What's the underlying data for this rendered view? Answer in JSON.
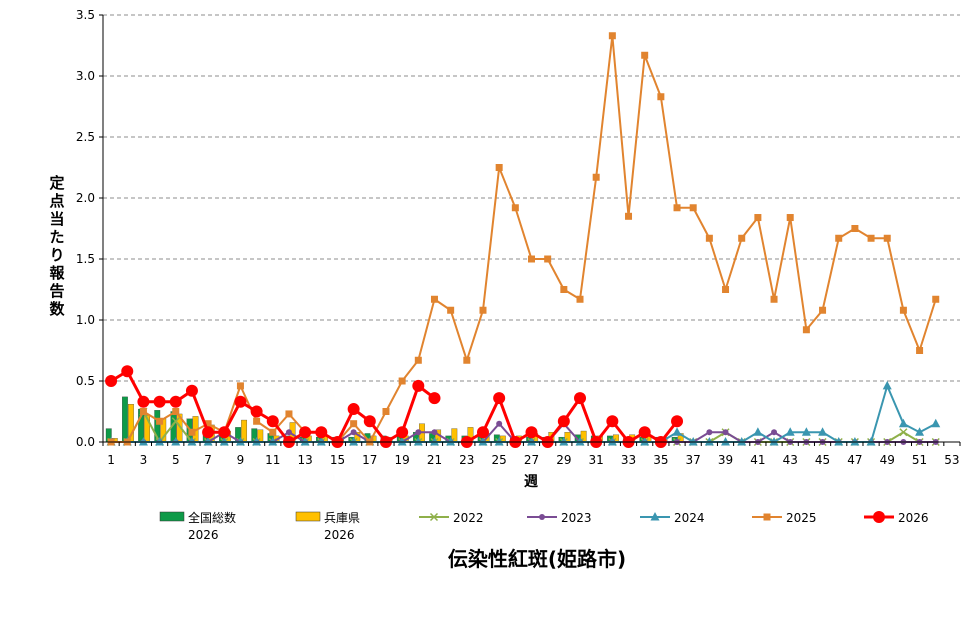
{
  "chart_data": {
    "type": "bar",
    "title": "伝染性紅斑(姫路市)",
    "xlabel": "週",
    "ylabel": "定点当たり報告数",
    "ylim": [
      0,
      3.5
    ],
    "yticks": [
      "0.0",
      "0.5",
      "1.0",
      "1.5",
      "2.0",
      "2.5",
      "3.0",
      "3.5"
    ],
    "x": [
      1,
      2,
      3,
      4,
      5,
      6,
      7,
      8,
      9,
      10,
      11,
      12,
      13,
      14,
      15,
      16,
      17,
      18,
      19,
      20,
      21,
      22,
      23,
      24,
      25,
      26,
      27,
      28,
      29,
      30,
      31,
      32,
      33,
      34,
      35,
      36,
      37,
      38,
      39,
      40,
      41,
      42,
      43,
      44,
      45,
      46,
      47,
      48,
      49,
      50,
      51,
      52,
      53
    ],
    "xtick_labels": [
      "1",
      "3",
      "5",
      "7",
      "9",
      "11",
      "13",
      "15",
      "17",
      "19",
      "21",
      "23",
      "25",
      "27",
      "29",
      "31",
      "33",
      "35",
      "37",
      "39",
      "41",
      "43",
      "45",
      "47",
      "49",
      "51",
      "53"
    ],
    "grid": true,
    "legend_position": "bottom",
    "bars": [
      {
        "name": "全国総数\n2026",
        "color": "#0e9a48",
        "values": [
          0.11,
          0.37,
          0.27,
          0.26,
          0.25,
          0.19,
          0.07,
          0.06,
          0.12,
          0.11,
          0.07,
          0.05,
          0.04,
          0.04,
          0.04,
          0.04,
          0.07,
          0.05,
          0.06,
          0.08,
          0.07,
          0.05,
          0.05,
          0.05,
          0.06,
          0.04,
          0.04,
          0.04,
          0.04,
          0.06,
          0.05,
          0.05,
          0.04,
          0.04,
          0.04,
          0.04,
          null,
          null,
          null,
          null,
          null,
          null,
          null,
          null,
          null,
          null,
          null,
          null,
          null,
          null,
          null,
          null,
          null
        ]
      },
      {
        "name": "兵庫県\n2026",
        "color": "#ffc000",
        "values": [
          0.03,
          0.31,
          0.22,
          0.19,
          0.23,
          0.21,
          0.14,
          0.09,
          0.18,
          0.1,
          0.05,
          0.16,
          0.05,
          0.05,
          0.04,
          0.08,
          0.05,
          0.04,
          0.05,
          0.15,
          0.1,
          0.11,
          0.12,
          0.07,
          0.05,
          0.05,
          0.07,
          0.08,
          0.08,
          0.09,
          0.05,
          0.06,
          0.06,
          0.05,
          0.04,
          0.07,
          null,
          null,
          null,
          null,
          null,
          null,
          null,
          null,
          null,
          null,
          null,
          null,
          null,
          null,
          null,
          null,
          null
        ]
      }
    ],
    "series": [
      {
        "name": "2022",
        "color": "#8fb04a",
        "marker": "x",
        "values": [
          0,
          0,
          0.25,
          0,
          0.17,
          0,
          0,
          0,
          0,
          0,
          0,
          0,
          0,
          0,
          0,
          0,
          0,
          0,
          0,
          0,
          0,
          0,
          0,
          0,
          0,
          0,
          0,
          0,
          0,
          0,
          0,
          0,
          0,
          0,
          0,
          0,
          0,
          0,
          0.08,
          0,
          0,
          0,
          0,
          0,
          0,
          0,
          0,
          0,
          0,
          0.08,
          0,
          0,
          null
        ]
      },
      {
        "name": "2023",
        "color": "#7a4c94",
        "marker": "circle",
        "values": [
          0,
          0,
          0,
          0,
          0,
          0,
          0,
          0.08,
          0,
          0,
          0,
          0.08,
          0,
          0,
          0,
          0.08,
          0,
          0,
          0,
          0.08,
          0.08,
          0,
          0,
          0,
          0.15,
          0,
          0,
          0,
          0.15,
          0,
          0,
          0,
          0,
          0,
          0,
          0,
          0,
          0.08,
          0.08,
          0,
          0,
          0.08,
          0,
          0,
          0,
          0,
          0,
          0,
          0,
          0,
          0,
          0,
          null
        ]
      },
      {
        "name": "2024",
        "color": "#3a96b0",
        "marker": "triangle",
        "values": [
          0,
          0,
          0,
          0,
          0,
          0,
          0,
          0,
          0,
          0,
          0,
          0,
          0,
          0,
          0,
          0,
          0,
          0,
          0,
          0,
          0,
          0,
          0,
          0,
          0,
          0,
          0,
          0,
          0,
          0,
          0,
          0,
          0,
          0,
          0,
          0.08,
          0,
          0,
          0,
          0,
          0.08,
          0,
          0.08,
          0.08,
          0.08,
          0,
          0,
          0,
          0.46,
          0.15,
          0.08,
          0.15,
          null
        ]
      },
      {
        "name": "2025",
        "color": "#e1842f",
        "marker": "square",
        "values": [
          0,
          0,
          0.25,
          0.17,
          0.25,
          0.08,
          0.15,
          0.08,
          0.46,
          0.17,
          0.08,
          0.23,
          0.08,
          0.08,
          0,
          0.15,
          0,
          0.25,
          0.5,
          0.67,
          1.17,
          1.08,
          0.67,
          1.08,
          2.25,
          1.92,
          1.5,
          1.5,
          1.25,
          1.17,
          2.17,
          3.33,
          1.85,
          3.17,
          2.83,
          1.92,
          1.92,
          1.67,
          1.25,
          1.67,
          1.84,
          1.17,
          1.84,
          0.92,
          1.08,
          1.67,
          1.75,
          1.67,
          1.67,
          1.08,
          0.75,
          1.17,
          null
        ]
      },
      {
        "name": "2026",
        "color": "#ff0000",
        "marker": "circle-big",
        "values": [
          0.5,
          0.58,
          0.33,
          0.33,
          0.33,
          0.42,
          0.08,
          0.08,
          0.33,
          0.25,
          0.17,
          0,
          0.08,
          0.08,
          0,
          0.27,
          0.17,
          0,
          0.08,
          0.46,
          0.36,
          null,
          0,
          0.08,
          0.36,
          0,
          0.08,
          0,
          0.17,
          0.36,
          0,
          0.17,
          0,
          0.08,
          0,
          0.17,
          null,
          null,
          null,
          null,
          null,
          null,
          null,
          null,
          null,
          null,
          null,
          null,
          null,
          null,
          null,
          null,
          null
        ]
      }
    ]
  }
}
